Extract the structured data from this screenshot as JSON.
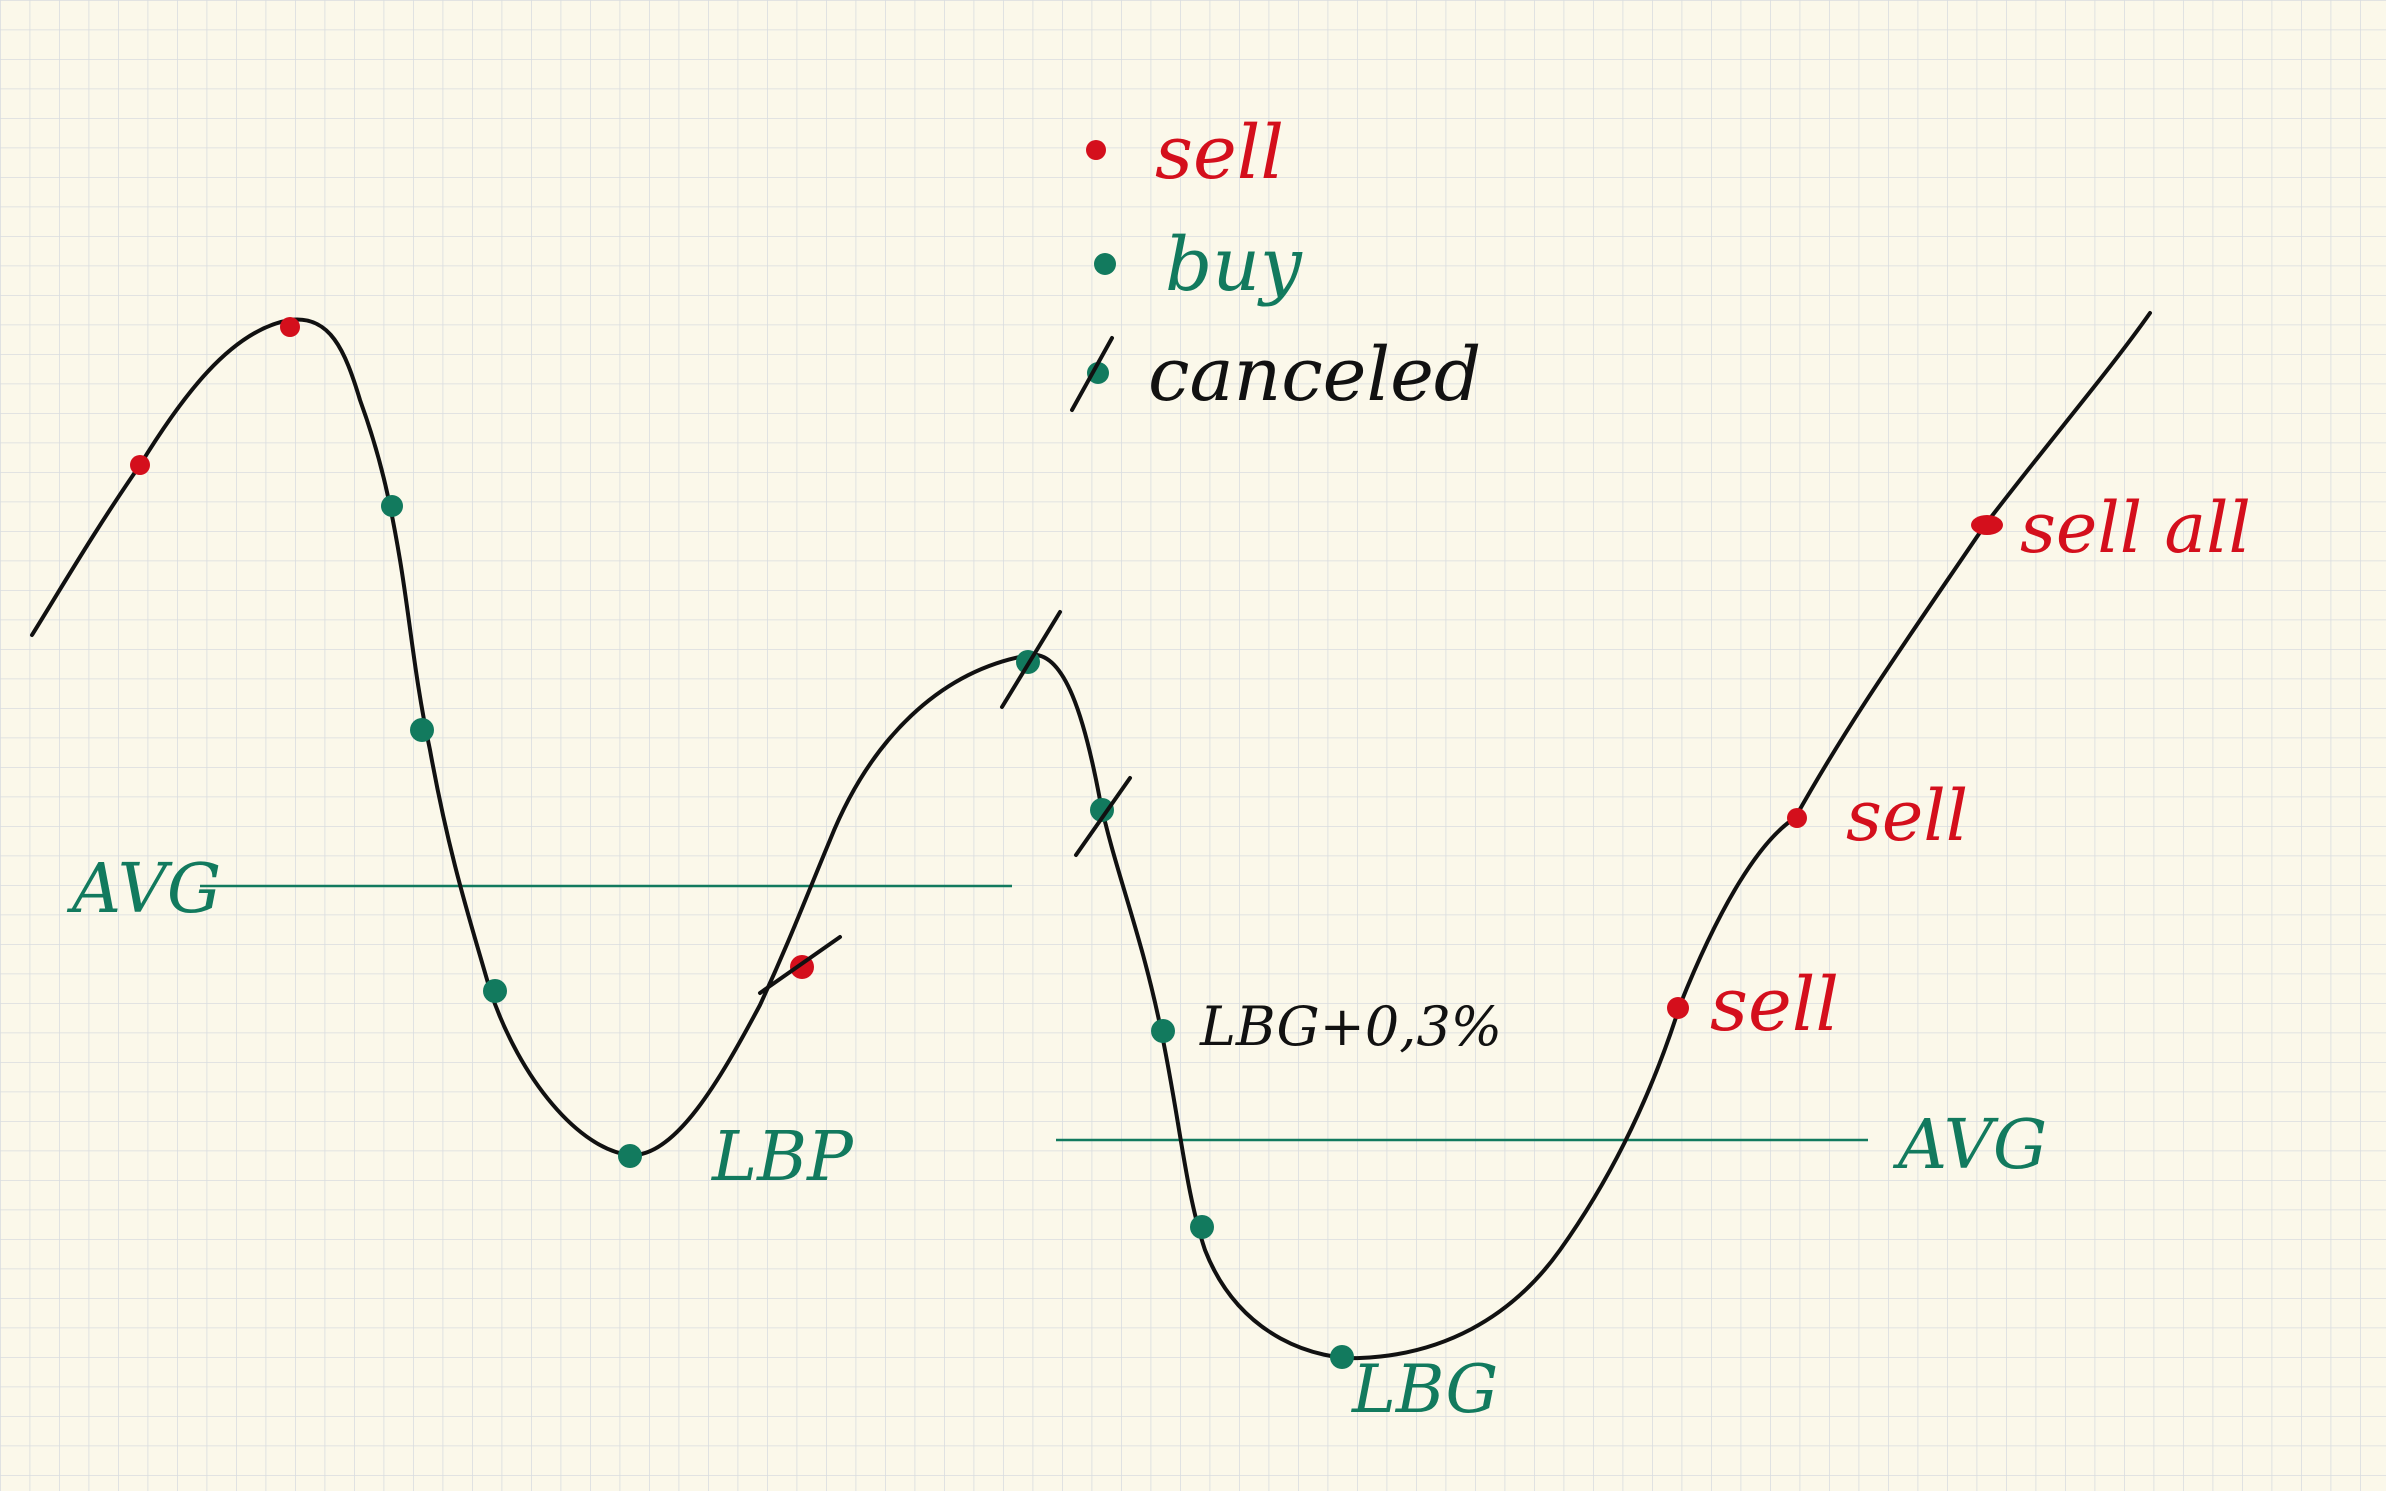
{
  "colors": {
    "paper": "#fbf8ea",
    "grid": "#d9dcdf",
    "curve": "#111111",
    "sell": "#d40f1c",
    "buy": "#127a5e",
    "canceled": "#111111"
  },
  "legend": {
    "sell_label": "sell",
    "buy_label": "buy",
    "canceled_label": "canceled"
  },
  "annotations": {
    "avg_left": "AVG",
    "avg_right": "AVG",
    "lbp": "LBP",
    "lbg": "LBG",
    "lbg_plus": "LBG+0,3%",
    "sell_all": "sell all",
    "sell_mid": "sell",
    "sell_low": "sell"
  },
  "markers": [
    {
      "kind": "sell"
    },
    {
      "kind": "sell"
    },
    {
      "kind": "buy"
    },
    {
      "kind": "buy"
    },
    {
      "kind": "buy"
    },
    {
      "kind": "buy"
    },
    {
      "kind": "sell",
      "canceled": true
    },
    {
      "kind": "buy",
      "canceled": true
    },
    {
      "kind": "buy",
      "canceled": true
    },
    {
      "kind": "buy"
    },
    {
      "kind": "buy"
    },
    {
      "kind": "buy"
    },
    {
      "kind": "sell"
    },
    {
      "kind": "sell"
    },
    {
      "kind": "sell"
    }
  ]
}
